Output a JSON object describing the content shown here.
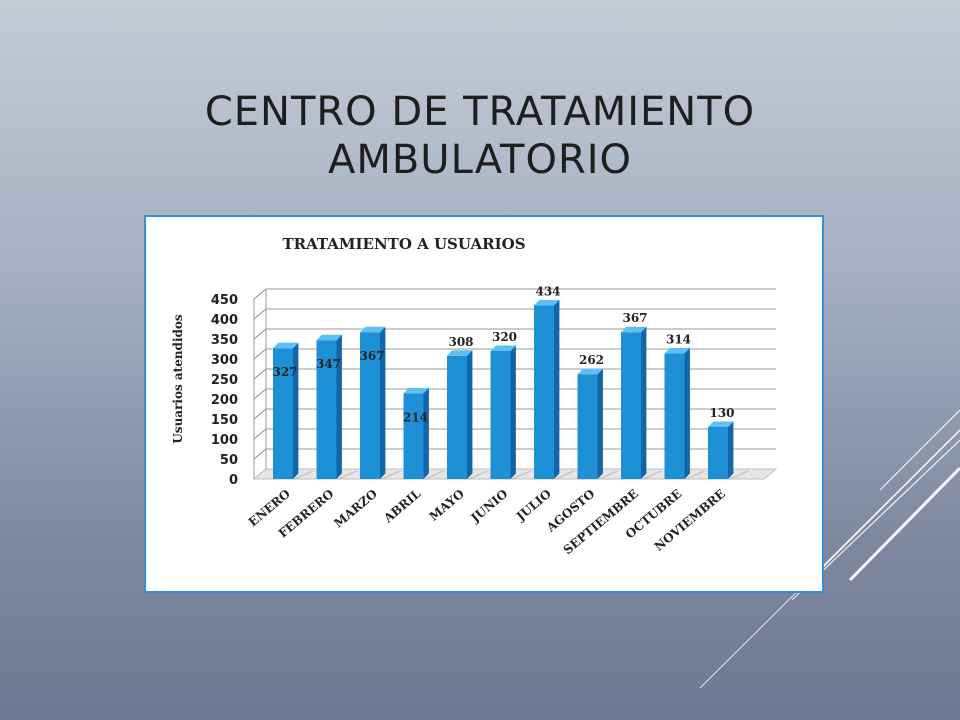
{
  "slide": {
    "title_line1": "CENTRO DE TRATAMIENTO",
    "title_line2": "AMBULATORIO"
  },
  "colors": {
    "bar_front": "#1e90d6",
    "bar_top": "#5cc0f2",
    "bar_side": "#1066a8",
    "frame_border": "#2f8fdc",
    "text": "#1e1e1e"
  },
  "chart_data": {
    "type": "bar",
    "title": "TRATAMIENTO A USUARIOS",
    "ylabel": "Usuarios atendidos",
    "xlabel": "",
    "categories": [
      "ENERO",
      "FEBRERO",
      "MARZO",
      "ABRIL",
      "MAYO",
      "JUNIO",
      "JULIO",
      "AGOSTO",
      "SEPTIEMBRE",
      "OCTUBRE",
      "NOVIEMBRE"
    ],
    "values": [
      327,
      347,
      367,
      214,
      308,
      320,
      434,
      262,
      367,
      314,
      130
    ],
    "ylim": [
      0,
      450
    ],
    "yticks": [
      0,
      50,
      100,
      150,
      200,
      250,
      300,
      350,
      400,
      450
    ],
    "grid": true,
    "three_d": true,
    "legend": "none"
  }
}
